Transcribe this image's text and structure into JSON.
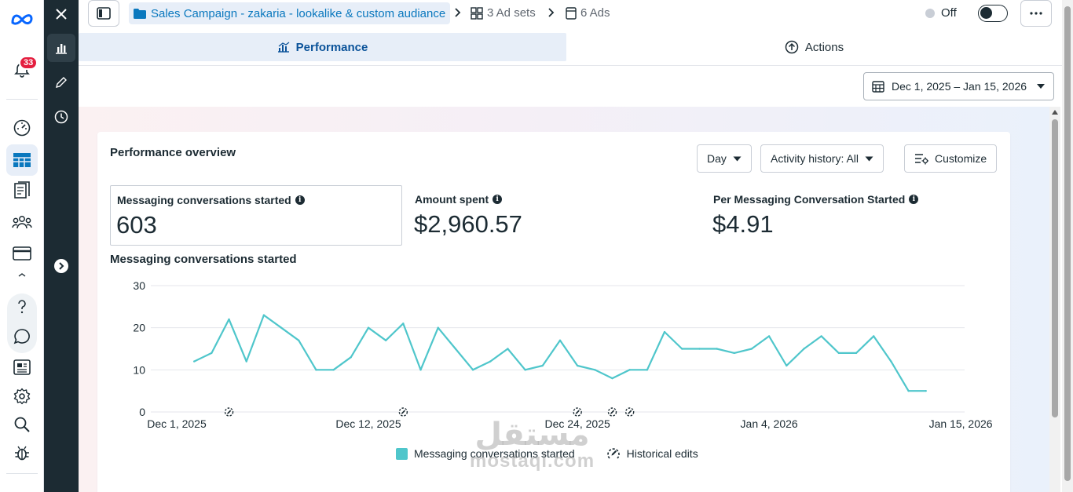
{
  "rail": {
    "notifications_count": "33",
    "icons": [
      "meta-logo-icon",
      "bell-icon",
      "dashboard-gauge-icon",
      "table-grid-icon",
      "catalog-pages-icon",
      "audiences-people-icon",
      "billing-card-icon",
      "help-icon",
      "chat-bubble-icon",
      "news-icon",
      "settings-gear-icon",
      "search-icon",
      "bug-icon"
    ]
  },
  "editor_rail": {
    "icons": [
      "close-icon",
      "bar-chart-icon",
      "pencil-icon",
      "clock-icon",
      "expand-arrow-icon"
    ]
  },
  "breadcrumb": {
    "campaign": "Sales Campaign - zakaria - lookalike & custom audiance",
    "ad_sets": "3 Ad sets",
    "ads": "6 Ads"
  },
  "status": {
    "label": "Off"
  },
  "tabs": {
    "performance": "Performance",
    "actions": "Actions"
  },
  "date_range": "Dec 1, 2025 – Jan 15, 2026",
  "overview": {
    "title": "Performance overview",
    "granularity": "Day",
    "activity_history": "Activity history: All",
    "customize": "Customize",
    "info_glyph": "i"
  },
  "metrics": [
    {
      "label": "Messaging conversations started",
      "value": "603"
    },
    {
      "label": "Amount spent",
      "value": "$2,960.57"
    },
    {
      "label": "Per Messaging Conversation Started",
      "value": "$4.91"
    }
  ],
  "chart_title": "Messaging conversations started",
  "legend": {
    "series": "Messaging conversations started",
    "edits": "Historical edits"
  },
  "watermark": {
    "arabic": "مستقل",
    "latin": "mostaql.com"
  },
  "colors": {
    "accent": "#0a78be",
    "series": "#4fc6cb",
    "dark_rail": "#1c2b33"
  },
  "chart_data": {
    "type": "line",
    "title": "Messaging conversations started",
    "y_ticks": [
      "0",
      "10",
      "20",
      "30"
    ],
    "x_tick_labels": [
      "Dec 1, 2025",
      "Dec 12, 2025",
      "Dec 24, 2025",
      "Jan 4, 2026",
      "Jan 15, 2026"
    ],
    "x_tick_index": [
      0,
      11,
      23,
      34,
      45
    ],
    "ylim": [
      0,
      30
    ],
    "grid": true,
    "legend_position": "bottom-center",
    "series": [
      {
        "name": "Messaging conversations started",
        "start": "Dec 2, 2025",
        "values": [
          12,
          14,
          22,
          12,
          23,
          20,
          17,
          10,
          10,
          13,
          20,
          17,
          21,
          10,
          20,
          15,
          10,
          12,
          15,
          10,
          11,
          17,
          11,
          10,
          8,
          10,
          10,
          19,
          15,
          15,
          15,
          14,
          15,
          18,
          11,
          15,
          18,
          14,
          14,
          18,
          12,
          5,
          5
        ]
      }
    ],
    "historical_edits": [
      "Dec 4, 2025",
      "Dec 14, 2025",
      "Dec 24, 2025",
      "Dec 26, 2025",
      "Dec 27, 2025"
    ]
  }
}
